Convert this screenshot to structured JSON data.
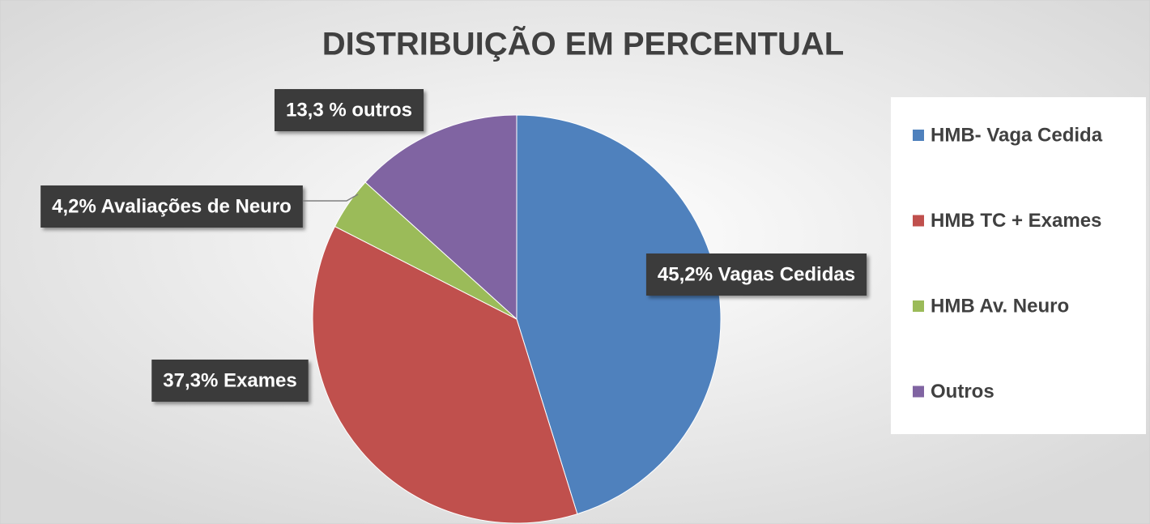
{
  "chart_data": {
    "type": "pie",
    "title": "DISTRIBUIÇÃO EM PERCENTUAL",
    "categories": [
      "HMB- Vaga Cedida",
      "HMB TC + Exames",
      "HMB Av. Neuro",
      "Outros"
    ],
    "values": [
      45.2,
      37.3,
      4.2,
      13.3
    ],
    "value_labels": [
      "45,2% Vagas Cedidas",
      "37,3% Exames",
      "4,2% Avaliações de Neuro",
      "13,3 % outros"
    ],
    "colors": [
      "#4f81bd",
      "#c0504d",
      "#9bbb59",
      "#8064a2"
    ],
    "legend": "right"
  }
}
